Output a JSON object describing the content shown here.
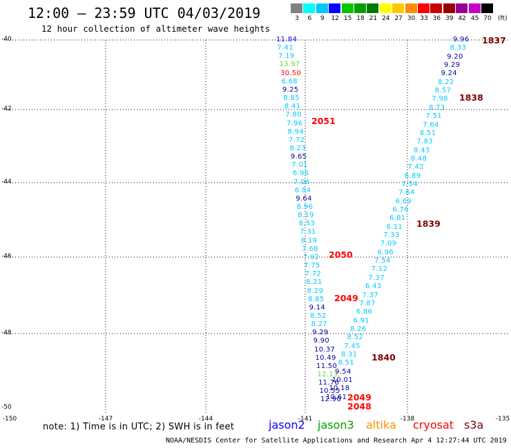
{
  "header": {
    "title": "12:00 – 23:59 UTC 04/03/2019",
    "subtitle": "12 hour collection of altimeter wave heights"
  },
  "color_scale": {
    "unit": "(ft)",
    "items": [
      {
        "label": "3",
        "color": "#808080"
      },
      {
        "label": "6",
        "color": "#00ffff"
      },
      {
        "label": "9",
        "color": "#00c8ff"
      },
      {
        "label": "12",
        "color": "#0000ff"
      },
      {
        "label": "15",
        "color": "#00c800"
      },
      {
        "label": "18",
        "color": "#00a000"
      },
      {
        "label": "21",
        "color": "#007800"
      },
      {
        "label": "24",
        "color": "#ffff00"
      },
      {
        "label": "27",
        "color": "#ffc800"
      },
      {
        "label": "30",
        "color": "#ff8c00"
      },
      {
        "label": "33",
        "color": "#ff0000"
      },
      {
        "label": "36",
        "color": "#c80000"
      },
      {
        "label": "39",
        "color": "#960000"
      },
      {
        "label": "42",
        "color": "#960096"
      },
      {
        "label": "45",
        "color": "#c800c8"
      },
      {
        "label": "70",
        "color": "#000000"
      }
    ]
  },
  "map": {
    "lat_labels": [
      "-40",
      "-42",
      "-44",
      "-46",
      "-48",
      "-50"
    ],
    "lon_labels": [
      "-150",
      "-147",
      "-144",
      "-141",
      "-138",
      "-135"
    ],
    "track_west": [
      {
        "v": "11.84",
        "c": "#0000ff"
      },
      {
        "v": "7.41",
        "c": "#00c8ff"
      },
      {
        "v": "7.19",
        "c": "#00c8ff"
      },
      {
        "v": "13.97",
        "c": "#64dc32"
      },
      {
        "v": "30.50",
        "c": "#ff0000"
      },
      {
        "v": "6.68",
        "c": "#00c8ff"
      },
      {
        "v": "9.25",
        "c": "#0000a0"
      },
      {
        "v": "8.85",
        "c": "#00c8ff"
      },
      {
        "v": "8.41",
        "c": "#00c8ff"
      },
      {
        "v": "7.80",
        "c": "#00c8ff"
      },
      {
        "v": "7.96",
        "c": "#00c8ff"
      },
      {
        "v": "8.94",
        "c": "#00c8ff"
      },
      {
        "v": "7.72",
        "c": "#00c8ff"
      },
      {
        "v": "8.23",
        "c": "#00c8ff"
      },
      {
        "v": "9.65",
        "c": "#0000a0"
      },
      {
        "v": "7.01",
        "c": "#00c8ff"
      },
      {
        "v": "6.96",
        "c": "#00c8ff"
      },
      {
        "v": "7.06",
        "c": "#00c8ff"
      },
      {
        "v": "6.84",
        "c": "#00c8ff"
      },
      {
        "v": "9.64",
        "c": "#0000a0"
      },
      {
        "v": "8.96",
        "c": "#00c8ff"
      },
      {
        "v": "8.19",
        "c": "#00c8ff"
      },
      {
        "v": "8.53",
        "c": "#00c8ff"
      },
      {
        "v": "7.31",
        "c": "#00c8ff"
      },
      {
        "v": "8.19",
        "c": "#00c8ff"
      },
      {
        "v": "7.68",
        "c": "#00c8ff"
      },
      {
        "v": "7.92",
        "c": "#00c8ff"
      },
      {
        "v": "7.75",
        "c": "#00c8ff"
      },
      {
        "v": "7.72",
        "c": "#00c8ff"
      },
      {
        "v": "8.21",
        "c": "#00c8ff"
      },
      {
        "v": "8.29",
        "c": "#00c8ff"
      },
      {
        "v": "8.85",
        "c": "#00c8ff"
      },
      {
        "v": "9.14",
        "c": "#0000a0"
      },
      {
        "v": "8.52",
        "c": "#00c8ff"
      },
      {
        "v": "8.27",
        "c": "#00c8ff"
      },
      {
        "v": "9.29",
        "c": "#0000a0"
      },
      {
        "v": "9.90",
        "c": "#0000a0"
      },
      {
        "v": "10.37",
        "c": "#0000a0"
      },
      {
        "v": "10.49",
        "c": "#0000a0"
      },
      {
        "v": "11.50",
        "c": "#0000a0"
      },
      {
        "v": "12.13",
        "c": "#64dc32"
      },
      {
        "v": "11.76",
        "c": "#0000a0"
      },
      {
        "v": "10.55",
        "c": "#0000a0"
      },
      {
        "v": "12.90",
        "c": "#0000a0"
      }
    ],
    "track_east": [
      {
        "v": "9.96",
        "c": "#0000a0"
      },
      {
        "v": "8.33",
        "c": "#00c8ff"
      },
      {
        "v": "9.20",
        "c": "#0000a0"
      },
      {
        "v": "9.29",
        "c": "#0000a0"
      },
      {
        "v": "9.24",
        "c": "#0000a0"
      },
      {
        "v": "8.22",
        "c": "#00c8ff"
      },
      {
        "v": "8.57",
        "c": "#00c8ff"
      },
      {
        "v": "7.98",
        "c": "#00c8ff"
      },
      {
        "v": "8.73",
        "c": "#00c8ff"
      },
      {
        "v": "7.51",
        "c": "#00c8ff"
      },
      {
        "v": "7.64",
        "c": "#00c8ff"
      },
      {
        "v": "8.51",
        "c": "#00c8ff"
      },
      {
        "v": "7.83",
        "c": "#00c8ff"
      },
      {
        "v": "8.43",
        "c": "#00c8ff"
      },
      {
        "v": "8.48",
        "c": "#00c8ff"
      },
      {
        "v": "7.42",
        "c": "#00c8ff"
      },
      {
        "v": "6.89",
        "c": "#00c8ff"
      },
      {
        "v": "7.54",
        "c": "#00c8ff"
      },
      {
        "v": "7.64",
        "c": "#00c8ff"
      },
      {
        "v": "6.69",
        "c": "#00c8ff"
      },
      {
        "v": "6.76",
        "c": "#00c8ff"
      },
      {
        "v": "6.81",
        "c": "#00c8ff"
      },
      {
        "v": "6.11",
        "c": "#00c8ff"
      },
      {
        "v": "7.33",
        "c": "#00c8ff"
      },
      {
        "v": "7.09",
        "c": "#00c8ff"
      },
      {
        "v": "6.96",
        "c": "#00c8ff"
      },
      {
        "v": "7.54",
        "c": "#00c8ff"
      },
      {
        "v": "7.12",
        "c": "#00c8ff"
      },
      {
        "v": "7.37",
        "c": "#00c8ff"
      },
      {
        "v": "6.43",
        "c": "#00c8ff"
      },
      {
        "v": "7.37",
        "c": "#00c8ff"
      },
      {
        "v": "7.87",
        "c": "#00c8ff"
      },
      {
        "v": "6.86",
        "c": "#00c8ff"
      },
      {
        "v": "6.91",
        "c": "#00c8ff"
      },
      {
        "v": "8.26",
        "c": "#00c8ff"
      },
      {
        "v": "8.52",
        "c": "#00c8ff"
      },
      {
        "v": "7.45",
        "c": "#00c8ff"
      },
      {
        "v": "8.31",
        "c": "#00c8ff"
      },
      {
        "v": "8.51",
        "c": "#00c8ff"
      },
      {
        "v": "9.54",
        "c": "#0000a0"
      },
      {
        "v": "10.01",
        "c": "#0000a0"
      },
      {
        "v": "10.18",
        "c": "#0000a0"
      },
      {
        "v": "10.61",
        "c": "#0000a0"
      }
    ],
    "pass_labels": [
      {
        "label": "1837",
        "color": "#800000"
      },
      {
        "label": "1838",
        "color": "#800000"
      },
      {
        "label": "2051",
        "color": "#ff0000"
      },
      {
        "label": "1839",
        "color": "#800000"
      },
      {
        "label": "2050",
        "color": "#ff0000"
      },
      {
        "label": "2049",
        "color": "#ff0000"
      },
      {
        "label": "1840",
        "color": "#800000"
      },
      {
        "label": "2049",
        "color": "#ff0000"
      },
      {
        "label": "2048",
        "color": "#ff0000"
      }
    ]
  },
  "footer": {
    "note": "note:  1) Time is in UTC;  2) SWH is in feet",
    "satellites": [
      {
        "name": "jason2",
        "color": "#0000ff"
      },
      {
        "name": "jason3",
        "color": "#00a000"
      },
      {
        "name": "altika",
        "color": "#ff8c00"
      },
      {
        "name": "cryosat",
        "color": "#ff0000"
      },
      {
        "name": "s3a",
        "color": "#800000"
      }
    ],
    "credit": "NOAA/NESDIS Center for Satellite Applications and Research    Apr  4 12:27:44 UTC 2019"
  }
}
